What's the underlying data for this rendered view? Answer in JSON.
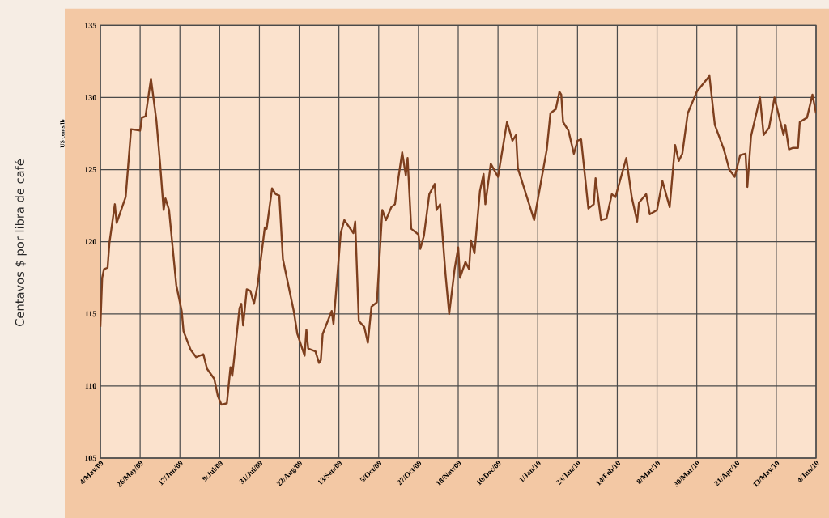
{
  "chart_data": {
    "type": "line",
    "ylabel": "US cents/lb",
    "annotations": [
      "Centavos $ por libra de café"
    ],
    "color": "#7e3f1e",
    "xlim": [
      "2009-05-04",
      "2010-06-04"
    ],
    "ylim": [
      105,
      135
    ],
    "yticks": [
      105,
      110,
      115,
      120,
      125,
      130,
      135
    ],
    "xticks": [
      {
        "value": "2009-05-04",
        "label": "4/May/09"
      },
      {
        "value": "2009-05-26",
        "label": "26/May/09"
      },
      {
        "value": "2009-06-17",
        "label": "17/Jun/09"
      },
      {
        "value": "2009-07-09",
        "label": "9/Jul/09"
      },
      {
        "value": "2009-07-31",
        "label": "31/Jul/09"
      },
      {
        "value": "2009-08-22",
        "label": "22/Aug/09"
      },
      {
        "value": "2009-09-13",
        "label": "13/Sep/09"
      },
      {
        "value": "2009-10-05",
        "label": "5/Oct/09"
      },
      {
        "value": "2009-10-27",
        "label": "27/Oct/09"
      },
      {
        "value": "2009-11-18",
        "label": "18/Nov/09"
      },
      {
        "value": "2009-12-10",
        "label": "10/Dec/09"
      },
      {
        "value": "2010-01-01",
        "label": "1/Jan/10"
      },
      {
        "value": "2010-01-23",
        "label": "23/Jan/10"
      },
      {
        "value": "2010-02-14",
        "label": "14/Feb/10"
      },
      {
        "value": "2010-03-08",
        "label": "8/Mar/10"
      },
      {
        "value": "2010-03-30",
        "label": "30/Mar/10"
      },
      {
        "value": "2010-04-21",
        "label": "21/Apr/10"
      },
      {
        "value": "2010-05-13",
        "label": "13/May/10"
      },
      {
        "value": "2010-06-04",
        "label": "4/Jun/10"
      }
    ],
    "grid": true,
    "x": [
      "2009-05-04",
      "2009-05-05",
      "2009-05-06",
      "2009-05-08",
      "2009-05-09",
      "2009-05-12",
      "2009-05-13",
      "2009-05-18",
      "2009-05-21",
      "2009-05-26",
      "2009-05-27",
      "2009-05-29",
      "2009-06-01",
      "2009-06-04",
      "2009-06-06",
      "2009-06-08",
      "2009-06-09",
      "2009-06-11",
      "2009-06-15",
      "2009-06-18",
      "2009-06-19",
      "2009-06-23",
      "2009-06-26",
      "2009-06-30",
      "2009-07-02",
      "2009-07-06",
      "2009-07-08",
      "2009-07-10",
      "2009-07-13",
      "2009-07-15",
      "2009-07-16",
      "2009-07-20",
      "2009-07-21",
      "2009-07-22",
      "2009-07-24",
      "2009-07-26",
      "2009-07-28",
      "2009-07-30",
      "2009-08-03",
      "2009-08-04",
      "2009-08-07",
      "2009-08-09",
      "2009-08-11",
      "2009-08-13",
      "2009-08-19",
      "2009-08-21",
      "2009-08-25",
      "2009-08-26",
      "2009-08-27",
      "2009-08-31",
      "2009-09-02",
      "2009-09-03",
      "2009-09-04",
      "2009-09-09",
      "2009-09-10",
      "2009-09-14",
      "2009-09-16",
      "2009-09-21",
      "2009-09-22",
      "2009-09-24",
      "2009-09-27",
      "2009-09-29",
      "2009-10-01",
      "2009-10-04",
      "2009-10-07",
      "2009-10-09",
      "2009-10-12",
      "2009-10-14",
      "2009-10-16",
      "2009-10-18",
      "2009-10-20",
      "2009-10-21",
      "2009-10-23",
      "2009-10-27",
      "2009-10-28",
      "2009-10-30",
      "2009-11-02",
      "2009-11-05",
      "2009-11-06",
      "2009-11-08",
      "2009-11-11",
      "2009-11-13",
      "2009-11-16",
      "2009-11-18",
      "2009-11-19",
      "2009-11-22",
      "2009-11-24",
      "2009-11-25",
      "2009-11-27",
      "2009-11-30",
      "2009-12-02",
      "2009-12-03",
      "2009-12-06",
      "2009-12-10",
      "2009-12-15",
      "2009-12-18",
      "2009-12-20",
      "2009-12-21",
      "2009-12-30",
      "2010-01-06",
      "2010-01-08",
      "2010-01-11",
      "2010-01-13",
      "2010-01-14",
      "2010-01-15",
      "2010-01-18",
      "2010-01-21",
      "2010-01-23",
      "2010-01-25",
      "2010-01-29",
      "2010-02-01",
      "2010-02-02",
      "2010-02-05",
      "2010-02-08",
      "2010-02-11",
      "2010-02-13",
      "2010-02-19",
      "2010-02-22",
      "2010-02-25",
      "2010-02-26",
      "2010-03-02",
      "2010-03-04",
      "2010-03-08",
      "2010-03-11",
      "2010-03-15",
      "2010-03-18",
      "2010-03-20",
      "2010-03-22",
      "2010-03-25",
      "2010-03-29",
      "2010-03-30",
      "2010-04-06",
      "2010-04-09",
      "2010-04-14",
      "2010-04-17",
      "2010-04-20",
      "2010-04-23",
      "2010-04-26",
      "2010-04-27",
      "2010-04-29",
      "2010-05-04",
      "2010-05-06",
      "2010-05-09",
      "2010-05-12",
      "2010-05-17",
      "2010-05-18",
      "2010-05-20",
      "2010-05-22",
      "2010-05-25",
      "2010-05-26",
      "2010-05-30",
      "2010-06-02",
      "2010-06-04"
    ],
    "values": [
      114.1,
      117.5,
      118.1,
      118.2,
      119.9,
      122.6,
      121.3,
      123.1,
      127.8,
      127.7,
      128.6,
      128.7,
      131.3,
      128.4,
      125.5,
      122.2,
      123.0,
      122.2,
      117.0,
      115.2,
      113.8,
      112.5,
      112.0,
      112.2,
      111.2,
      110.5,
      109.3,
      108.7,
      108.8,
      111.3,
      110.7,
      115.4,
      115.7,
      114.2,
      116.7,
      116.6,
      115.7,
      117.0,
      121.0,
      120.9,
      123.7,
      123.3,
      123.2,
      118.8,
      115.2,
      113.6,
      112.1,
      113.9,
      112.6,
      112.4,
      111.6,
      111.8,
      113.6,
      115.2,
      114.3,
      120.6,
      121.5,
      120.6,
      121.4,
      114.5,
      114.1,
      113.0,
      115.5,
      115.8,
      122.2,
      121.5,
      122.4,
      122.6,
      124.5,
      126.2,
      124.6,
      125.8,
      120.9,
      120.5,
      119.5,
      120.4,
      123.3,
      124.0,
      122.2,
      122.6,
      117.7,
      115.0,
      118.1,
      119.6,
      117.5,
      118.6,
      118.1,
      120.1,
      119.2,
      123.5,
      124.7,
      122.6,
      125.4,
      124.5,
      128.3,
      127.0,
      127.4,
      125.1,
      121.5,
      126.4,
      128.9,
      129.2,
      130.4,
      130.2,
      128.3,
      127.7,
      126.1,
      127.0,
      127.1,
      122.3,
      122.6,
      124.4,
      121.5,
      121.6,
      123.3,
      123.1,
      125.8,
      123.1,
      121.4,
      122.7,
      123.3,
      121.9,
      122.2,
      124.2,
      122.4,
      126.7,
      125.6,
      126.1,
      128.9,
      130.1,
      130.4,
      131.5,
      128.1,
      126.4,
      125.0,
      124.5,
      126.0,
      126.1,
      123.8,
      127.3,
      130.0,
      127.4,
      127.9,
      130.0,
      127.4,
      128.1,
      126.4,
      126.5,
      126.5,
      128.3,
      128.6,
      130.2,
      128.9
    ]
  }
}
